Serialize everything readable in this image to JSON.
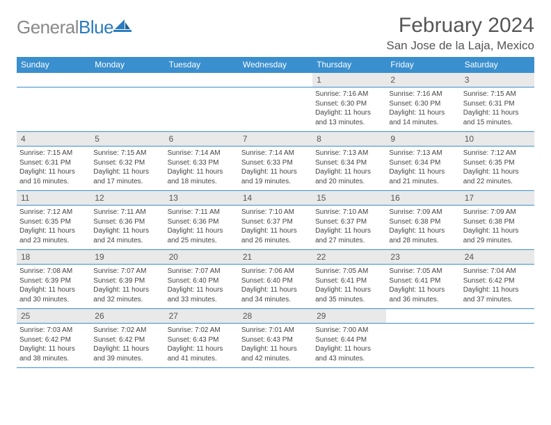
{
  "brand": {
    "general": "General",
    "blue": "Blue"
  },
  "header": {
    "month_title": "February 2024",
    "location": "San Jose de la Laja, Mexico"
  },
  "colors": {
    "header_bg": "#3a8fce",
    "daynum_bg": "#e9e9e9",
    "text": "#444444",
    "title_text": "#555555",
    "rule": "#3a8fce"
  },
  "calendar": {
    "dow": [
      "Sunday",
      "Monday",
      "Tuesday",
      "Wednesday",
      "Thursday",
      "Friday",
      "Saturday"
    ],
    "weeks": [
      [
        null,
        null,
        null,
        null,
        {
          "n": "1",
          "sr": "7:16 AM",
          "ss": "6:30 PM",
          "dl": "11 hours and 13 minutes."
        },
        {
          "n": "2",
          "sr": "7:16 AM",
          "ss": "6:30 PM",
          "dl": "11 hours and 14 minutes."
        },
        {
          "n": "3",
          "sr": "7:15 AM",
          "ss": "6:31 PM",
          "dl": "11 hours and 15 minutes."
        }
      ],
      [
        {
          "n": "4",
          "sr": "7:15 AM",
          "ss": "6:31 PM",
          "dl": "11 hours and 16 minutes."
        },
        {
          "n": "5",
          "sr": "7:15 AM",
          "ss": "6:32 PM",
          "dl": "11 hours and 17 minutes."
        },
        {
          "n": "6",
          "sr": "7:14 AM",
          "ss": "6:33 PM",
          "dl": "11 hours and 18 minutes."
        },
        {
          "n": "7",
          "sr": "7:14 AM",
          "ss": "6:33 PM",
          "dl": "11 hours and 19 minutes."
        },
        {
          "n": "8",
          "sr": "7:13 AM",
          "ss": "6:34 PM",
          "dl": "11 hours and 20 minutes."
        },
        {
          "n": "9",
          "sr": "7:13 AM",
          "ss": "6:34 PM",
          "dl": "11 hours and 21 minutes."
        },
        {
          "n": "10",
          "sr": "7:12 AM",
          "ss": "6:35 PM",
          "dl": "11 hours and 22 minutes."
        }
      ],
      [
        {
          "n": "11",
          "sr": "7:12 AM",
          "ss": "6:35 PM",
          "dl": "11 hours and 23 minutes."
        },
        {
          "n": "12",
          "sr": "7:11 AM",
          "ss": "6:36 PM",
          "dl": "11 hours and 24 minutes."
        },
        {
          "n": "13",
          "sr": "7:11 AM",
          "ss": "6:36 PM",
          "dl": "11 hours and 25 minutes."
        },
        {
          "n": "14",
          "sr": "7:10 AM",
          "ss": "6:37 PM",
          "dl": "11 hours and 26 minutes."
        },
        {
          "n": "15",
          "sr": "7:10 AM",
          "ss": "6:37 PM",
          "dl": "11 hours and 27 minutes."
        },
        {
          "n": "16",
          "sr": "7:09 AM",
          "ss": "6:38 PM",
          "dl": "11 hours and 28 minutes."
        },
        {
          "n": "17",
          "sr": "7:09 AM",
          "ss": "6:38 PM",
          "dl": "11 hours and 29 minutes."
        }
      ],
      [
        {
          "n": "18",
          "sr": "7:08 AM",
          "ss": "6:39 PM",
          "dl": "11 hours and 30 minutes."
        },
        {
          "n": "19",
          "sr": "7:07 AM",
          "ss": "6:39 PM",
          "dl": "11 hours and 32 minutes."
        },
        {
          "n": "20",
          "sr": "7:07 AM",
          "ss": "6:40 PM",
          "dl": "11 hours and 33 minutes."
        },
        {
          "n": "21",
          "sr": "7:06 AM",
          "ss": "6:40 PM",
          "dl": "11 hours and 34 minutes."
        },
        {
          "n": "22",
          "sr": "7:05 AM",
          "ss": "6:41 PM",
          "dl": "11 hours and 35 minutes."
        },
        {
          "n": "23",
          "sr": "7:05 AM",
          "ss": "6:41 PM",
          "dl": "11 hours and 36 minutes."
        },
        {
          "n": "24",
          "sr": "7:04 AM",
          "ss": "6:42 PM",
          "dl": "11 hours and 37 minutes."
        }
      ],
      [
        {
          "n": "25",
          "sr": "7:03 AM",
          "ss": "6:42 PM",
          "dl": "11 hours and 38 minutes."
        },
        {
          "n": "26",
          "sr": "7:02 AM",
          "ss": "6:42 PM",
          "dl": "11 hours and 39 minutes."
        },
        {
          "n": "27",
          "sr": "7:02 AM",
          "ss": "6:43 PM",
          "dl": "11 hours and 41 minutes."
        },
        {
          "n": "28",
          "sr": "7:01 AM",
          "ss": "6:43 PM",
          "dl": "11 hours and 42 minutes."
        },
        {
          "n": "29",
          "sr": "7:00 AM",
          "ss": "6:44 PM",
          "dl": "11 hours and 43 minutes."
        },
        null,
        null
      ]
    ],
    "labels": {
      "sunrise": "Sunrise:",
      "sunset": "Sunset:",
      "daylight": "Daylight:"
    }
  }
}
